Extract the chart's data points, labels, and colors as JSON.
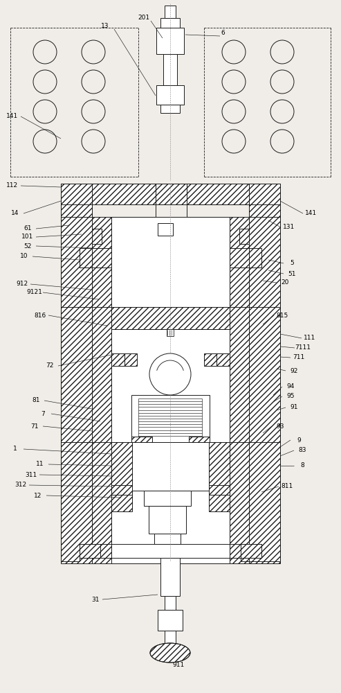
{
  "bg_color": "#f0ede8",
  "line_color": "#1a1a1a",
  "figsize": [
    4.93,
    10.0
  ],
  "dpi": 100,
  "annotations_left": [
    [
      "141",
      18,
      168
    ],
    [
      "112",
      18,
      268
    ],
    [
      "14",
      22,
      308
    ],
    [
      "61",
      42,
      330
    ],
    [
      "101",
      42,
      342
    ],
    [
      "52",
      42,
      355
    ],
    [
      "10",
      35,
      370
    ],
    [
      "912",
      32,
      410
    ],
    [
      "9121",
      50,
      422
    ],
    [
      "816",
      58,
      455
    ],
    [
      "72",
      72,
      528
    ],
    [
      "81",
      52,
      578
    ],
    [
      "7",
      62,
      597
    ],
    [
      "71",
      50,
      615
    ],
    [
      "1",
      22,
      648
    ],
    [
      "11",
      58,
      670
    ],
    [
      "311",
      45,
      685
    ],
    [
      "312",
      30,
      700
    ],
    [
      "12",
      55,
      715
    ]
  ],
  "annotations_right": [
    [
      "141",
      450,
      308
    ],
    [
      "131",
      418,
      328
    ],
    [
      "5",
      420,
      380
    ],
    [
      "51",
      420,
      395
    ],
    [
      "20",
      412,
      408
    ],
    [
      "815",
      408,
      455
    ],
    [
      "111",
      448,
      488
    ],
    [
      "7111",
      438,
      502
    ],
    [
      "711",
      432,
      516
    ],
    [
      "92",
      425,
      535
    ],
    [
      "94",
      420,
      558
    ],
    [
      "95",
      420,
      572
    ],
    [
      "91",
      425,
      588
    ],
    [
      "93",
      405,
      615
    ],
    [
      "9",
      432,
      635
    ],
    [
      "83",
      437,
      650
    ],
    [
      "8",
      437,
      672
    ],
    [
      "811",
      415,
      702
    ]
  ],
  "annotations_top": [
    [
      "13",
      152,
      38
    ],
    [
      "201",
      208,
      25
    ],
    [
      "6",
      322,
      48
    ]
  ],
  "annotations_bottom": [
    [
      "31",
      138,
      865
    ],
    [
      "911",
      258,
      960
    ]
  ]
}
